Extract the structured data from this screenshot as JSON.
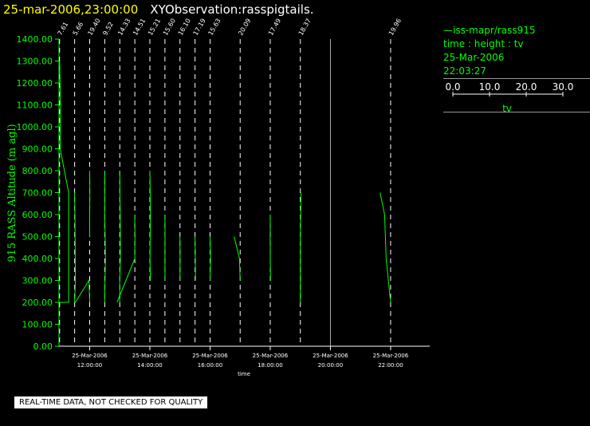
{
  "header": {
    "date": "25-mar-2006,23:00:00",
    "title": "XYObservation:rasspigtails."
  },
  "legend": {
    "source": "iss-mapr/rass915",
    "line2": "time : height : tv",
    "date": "25-Mar-2006",
    "time": "22:03:27",
    "scale_ticks": [
      "0.0",
      "10.0",
      "20.0",
      "30.0"
    ],
    "scale_label": "tv"
  },
  "footer": "REAL-TIME DATA, NOT CHECKED FOR QUALITY",
  "colors": {
    "trace": "#00ff00",
    "axis": "#ffffff",
    "header_date": "#ffff00"
  },
  "chart_data": {
    "type": "line",
    "xlabel": "time",
    "ylabel": "915 RASS Altitude (m agl)",
    "ylim": [
      0,
      1400
    ],
    "ytick_labels": [
      "0.00",
      "100.00",
      "200.00",
      "300.00",
      "400.00",
      "500.00",
      "600.00",
      "700.00",
      "800.00",
      "900.00",
      "1000.00",
      "1100.00",
      "1200.00",
      "1300.00",
      "1400.00"
    ],
    "xlim_hours": [
      10.98,
      23.3
    ],
    "x_ticks": [
      {
        "hour": 12,
        "date": "25-Mar-2006",
        "time": "12:00:00"
      },
      {
        "hour": 14,
        "date": "25-Mar-2006",
        "time": "14:00:00"
      },
      {
        "hour": 16,
        "date": "25-Mar-2006",
        "time": "16:00:00"
      },
      {
        "hour": 18,
        "date": "25-Mar-2006",
        "time": "18:00:00"
      },
      {
        "hour": 20,
        "date": "25-Mar-2006",
        "time": "20:00:00"
      },
      {
        "hour": 22,
        "date": "25-Mar-2006",
        "time": "22:00:00"
      }
    ],
    "time_markers": [
      {
        "hour": 11.0,
        "label": "7.61"
      },
      {
        "hour": 11.5,
        "label": "5.66"
      },
      {
        "hour": 12.0,
        "label": "19.40"
      },
      {
        "hour": 12.5,
        "label": "9.52"
      },
      {
        "hour": 13.0,
        "label": "14.33"
      },
      {
        "hour": 13.5,
        "label": "14.51"
      },
      {
        "hour": 14.0,
        "label": "15.21"
      },
      {
        "hour": 14.5,
        "label": "15.60"
      },
      {
        "hour": 15.0,
        "label": "16.10"
      },
      {
        "hour": 15.5,
        "label": "17.19"
      },
      {
        "hour": 16.0,
        "label": "15.63"
      },
      {
        "hour": 17.0,
        "label": "20.09"
      },
      {
        "hour": 18.0,
        "label": "17.49"
      },
      {
        "hour": 19.0,
        "label": "18.37"
      },
      {
        "hour": 22.0,
        "label": "19.96"
      }
    ],
    "solid_line_hour": 20.0,
    "tv_scale_hours_per_unit": 0.05,
    "series": [
      {
        "points": [
          [
            0,
            1300
          ],
          [
            0.6,
            1100
          ],
          [
            0.4,
            900
          ],
          [
            6,
            700
          ],
          [
            6,
            200
          ],
          [
            0,
            200
          ]
        ]
      },
      {
        "points": [
          [
            0,
            700
          ],
          [
            0.2,
            600
          ],
          [
            0.5,
            300
          ],
          [
            0,
            200
          ],
          [
            0.5,
            200
          ],
          [
            9.5,
            300
          ],
          [
            10,
            200
          ]
        ]
      },
      {
        "points": [
          [
            0,
            800
          ],
          [
            0.1,
            700
          ],
          [
            0,
            600
          ],
          [
            0,
            500
          ]
        ]
      },
      {
        "points": [
          [
            0,
            800
          ],
          [
            0,
            600
          ],
          [
            0.5,
            400
          ],
          [
            0.2,
            300
          ],
          [
            0,
            200
          ]
        ]
      },
      {
        "points": [
          [
            0,
            800
          ],
          [
            0.1,
            700
          ],
          [
            0.3,
            600
          ],
          [
            0.4,
            400
          ],
          [
            0,
            300
          ],
          [
            0,
            200
          ]
        ]
      },
      {
        "points": [
          [
            0,
            600
          ],
          [
            0.1,
            500
          ],
          [
            0,
            400
          ],
          [
            -11.8,
            200
          ]
        ]
      },
      {
        "points": [
          [
            0,
            800
          ],
          [
            0.2,
            700
          ],
          [
            0.4,
            600
          ],
          [
            0.2,
            500
          ],
          [
            0.1,
            400
          ],
          [
            0.3,
            300
          ]
        ]
      },
      {
        "points": [
          [
            0,
            600
          ],
          [
            0.1,
            500
          ],
          [
            0,
            400
          ],
          [
            0.1,
            300
          ]
        ]
      },
      {
        "points": [
          [
            0,
            500
          ],
          [
            0.1,
            400
          ],
          [
            0,
            300
          ]
        ]
      },
      {
        "points": [
          [
            0,
            500
          ],
          [
            0.2,
            400
          ],
          [
            0.3,
            300
          ]
        ]
      },
      {
        "points": [
          [
            0,
            500
          ],
          [
            0.3,
            400
          ],
          [
            0,
            300
          ]
        ]
      },
      {
        "points": [
          [
            -4,
            500
          ],
          [
            -0.5,
            400
          ],
          [
            0,
            300
          ]
        ]
      },
      {
        "points": [
          [
            0,
            600
          ],
          [
            -0.1,
            500
          ],
          [
            0,
            400
          ],
          [
            0.2,
            300
          ]
        ]
      },
      {
        "points": [
          [
            0.5,
            700
          ],
          [
            0,
            500
          ],
          [
            0,
            200
          ]
        ]
      },
      {
        "points": [
          [
            -7,
            700
          ],
          [
            -4,
            600
          ],
          [
            -3,
            400
          ],
          [
            0,
            200
          ]
        ]
      }
    ]
  }
}
